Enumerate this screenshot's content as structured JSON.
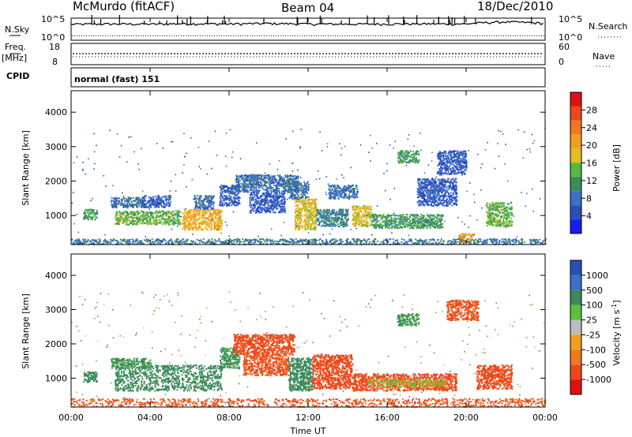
{
  "header": {
    "station": "McMurdo (fitACF)",
    "beam": "Beam 04",
    "date": "18/Dec/2010"
  },
  "top_panels": {
    "nsky_label": "N.Sky",
    "nsky_ticks": [
      "10^5",
      "10^0"
    ],
    "nsearch_label": "N.Search",
    "nsearch_ticks": [
      "10^5",
      "10^0"
    ],
    "freq_label": "Freq.",
    "freq_unit": "[MHz]",
    "freq_ticks": [
      "18",
      "8"
    ],
    "nave_label": "Nave",
    "nave_ticks": [
      "60",
      "0"
    ],
    "cpid_label": "CPID",
    "cpid_text": "normal (fast) 151"
  },
  "x_axis": {
    "title": "Time UT",
    "ticks": [
      "00:00",
      "04:00",
      "08:00",
      "12:00",
      "16:00",
      "20:00",
      "00:00"
    ]
  },
  "colors": {
    "power": [
      "#1a1aff",
      "#2a4fb8",
      "#3b70c8",
      "#3a8a5a",
      "#55b845",
      "#e0c020",
      "#f0a020",
      "#f07820",
      "#ee4818",
      "#e01010"
    ],
    "velocity": [
      "#e01010",
      "#ee4818",
      "#f07820",
      "#f0a020",
      "#bdbdbd",
      "#5ac040",
      "#3a8a5a",
      "#3b70c8",
      "#2a4fb8"
    ]
  },
  "chart_data": [
    {
      "type": "line",
      "name": "N.Sky / N.Search",
      "x_range_hours": [
        0,
        24
      ],
      "series": [
        {
          "name": "N.Sky",
          "x": [
            0,
            2,
            4,
            6,
            8,
            10,
            12,
            14,
            16,
            18,
            20,
            22,
            24
          ],
          "values": [
            5000,
            6000,
            5500,
            7000,
            6000,
            8000,
            6000,
            5500,
            6000,
            6500,
            6000,
            20000,
            8000
          ]
        },
        {
          "name": "N.Search",
          "x": [
            0,
            4,
            8,
            12,
            16,
            20,
            24
          ],
          "values": [
            1.5,
            1.5,
            1.5,
            1.5,
            1.5,
            1.5,
            1.5
          ]
        }
      ],
      "ylim": [
        1,
        100000
      ],
      "yscale": "log"
    },
    {
      "type": "scatter",
      "name": "Freq. / Nave",
      "x_range_hours": [
        0,
        24
      ],
      "series": [
        {
          "name": "Freq.",
          "x": [
            0,
            6,
            12,
            18,
            24
          ],
          "values": [
            12.6,
            12.6,
            12.6,
            12.6,
            12.6
          ]
        },
        {
          "name": "Nave",
          "x": [
            0,
            6,
            12,
            18,
            24
          ],
          "values": [
            30,
            30,
            30,
            30,
            30
          ]
        }
      ],
      "ylim_freq": [
        8,
        18
      ],
      "ylim_nave": [
        0,
        60
      ]
    },
    {
      "type": "heatmap",
      "name": "Power",
      "title": "",
      "xlabel": "Time UT",
      "ylabel": "Slant Range [km]",
      "x_range_hours": [
        0,
        24
      ],
      "ylim": [
        180,
        4600
      ],
      "yticks": [
        1000,
        2000,
        3000,
        4000
      ],
      "colorbar": {
        "label": "Power [dB]",
        "ticks": [
          4,
          8,
          12,
          16,
          20,
          24,
          28
        ],
        "range": [
          0,
          32
        ]
      },
      "patches": [
        {
          "t0": 0.6,
          "t1": 1.3,
          "r0": 900,
          "r1": 1200,
          "level": 12
        },
        {
          "t0": 2.2,
          "t1": 5.5,
          "r0": 750,
          "r1": 1150,
          "level": 14
        },
        {
          "t0": 2.0,
          "t1": 3.6,
          "r0": 1250,
          "r1": 1550,
          "level": 8
        },
        {
          "t0": 3.6,
          "t1": 5.0,
          "r0": 1250,
          "r1": 1600,
          "level": 6
        },
        {
          "t0": 5.6,
          "t1": 7.6,
          "r0": 600,
          "r1": 1200,
          "level": 20
        },
        {
          "t0": 6.2,
          "t1": 7.2,
          "r0": 1200,
          "r1": 1600,
          "level": 8
        },
        {
          "t0": 7.5,
          "t1": 8.5,
          "r0": 1300,
          "r1": 1900,
          "level": 6
        },
        {
          "t0": 8.3,
          "t1": 11.5,
          "r0": 1700,
          "r1": 2200,
          "level": 8
        },
        {
          "t0": 9.0,
          "t1": 10.8,
          "r0": 1100,
          "r1": 1700,
          "level": 6
        },
        {
          "t0": 11.3,
          "t1": 12.4,
          "r0": 600,
          "r1": 1500,
          "level": 18
        },
        {
          "t0": 11.0,
          "t1": 12.0,
          "r0": 1500,
          "r1": 2000,
          "level": 8
        },
        {
          "t0": 12.4,
          "t1": 14.0,
          "r0": 700,
          "r1": 1200,
          "level": 10
        },
        {
          "t0": 13.0,
          "t1": 14.5,
          "r0": 1500,
          "r1": 1900,
          "level": 8
        },
        {
          "t0": 14.2,
          "t1": 15.2,
          "r0": 700,
          "r1": 1300,
          "level": 18
        },
        {
          "t0": 15.2,
          "t1": 18.8,
          "r0": 650,
          "r1": 1050,
          "level": 12
        },
        {
          "t0": 16.5,
          "t1": 17.6,
          "r0": 2550,
          "r1": 2900,
          "level": 12
        },
        {
          "t0": 17.5,
          "t1": 19.5,
          "r0": 1300,
          "r1": 2100,
          "level": 6
        },
        {
          "t0": 18.5,
          "t1": 20.0,
          "r0": 2200,
          "r1": 2900,
          "level": 6
        },
        {
          "t0": 19.6,
          "t1": 20.4,
          "r0": 230,
          "r1": 500,
          "level": 22
        },
        {
          "t0": 21.0,
          "t1": 22.3,
          "r0": 700,
          "r1": 1400,
          "level": 14
        },
        {
          "t0": 0.0,
          "t1": 24.0,
          "r0": 180,
          "r1": 340,
          "level": 9
        }
      ]
    },
    {
      "type": "heatmap",
      "name": "Velocity",
      "title": "",
      "xlabel": "Time UT",
      "ylabel": "Slant Range [km]",
      "x_range_hours": [
        0,
        24
      ],
      "ylim": [
        180,
        4600
      ],
      "yticks": [
        1000,
        2000,
        3000,
        4000
      ],
      "colorbar": {
        "label": "Velocity [m s^-1]",
        "ticks": [
          1000,
          500,
          100,
          25,
          -25,
          -100,
          -500,
          -1000
        ]
      },
      "patches": [
        {
          "t0": 0.6,
          "t1": 1.3,
          "r0": 900,
          "r1": 1200,
          "vel": 200
        },
        {
          "t0": 2.2,
          "t1": 7.6,
          "r0": 650,
          "r1": 1400,
          "vel": 300
        },
        {
          "t0": 2.0,
          "t1": 4.0,
          "r0": 1300,
          "r1": 1600,
          "vel": 150
        },
        {
          "t0": 7.5,
          "t1": 8.5,
          "r0": 1300,
          "r1": 1900,
          "vel": 150
        },
        {
          "t0": 8.2,
          "t1": 11.3,
          "r0": 1700,
          "r1": 2300,
          "vel": -300
        },
        {
          "t0": 8.7,
          "t1": 11.0,
          "r0": 1100,
          "r1": 1700,
          "vel": -150
        },
        {
          "t0": 11.0,
          "t1": 12.2,
          "r0": 650,
          "r1": 1600,
          "vel": 400
        },
        {
          "t0": 12.2,
          "t1": 14.2,
          "r0": 700,
          "r1": 1700,
          "vel": -300
        },
        {
          "t0": 14.2,
          "t1": 19.5,
          "r0": 650,
          "r1": 1150,
          "vel": -200
        },
        {
          "t0": 15.0,
          "t1": 19.0,
          "r0": 750,
          "r1": 1000,
          "vel": 0
        },
        {
          "t0": 16.5,
          "t1": 17.6,
          "r0": 2550,
          "r1": 2900,
          "vel": 150
        },
        {
          "t0": 19.0,
          "t1": 20.6,
          "r0": 2700,
          "r1": 3300,
          "vel": -150
        },
        {
          "t0": 20.5,
          "t1": 22.3,
          "r0": 700,
          "r1": 1400,
          "vel": -200
        },
        {
          "t0": 0.0,
          "t1": 24.0,
          "r0": 180,
          "r1": 420,
          "vel": -150
        }
      ]
    }
  ]
}
